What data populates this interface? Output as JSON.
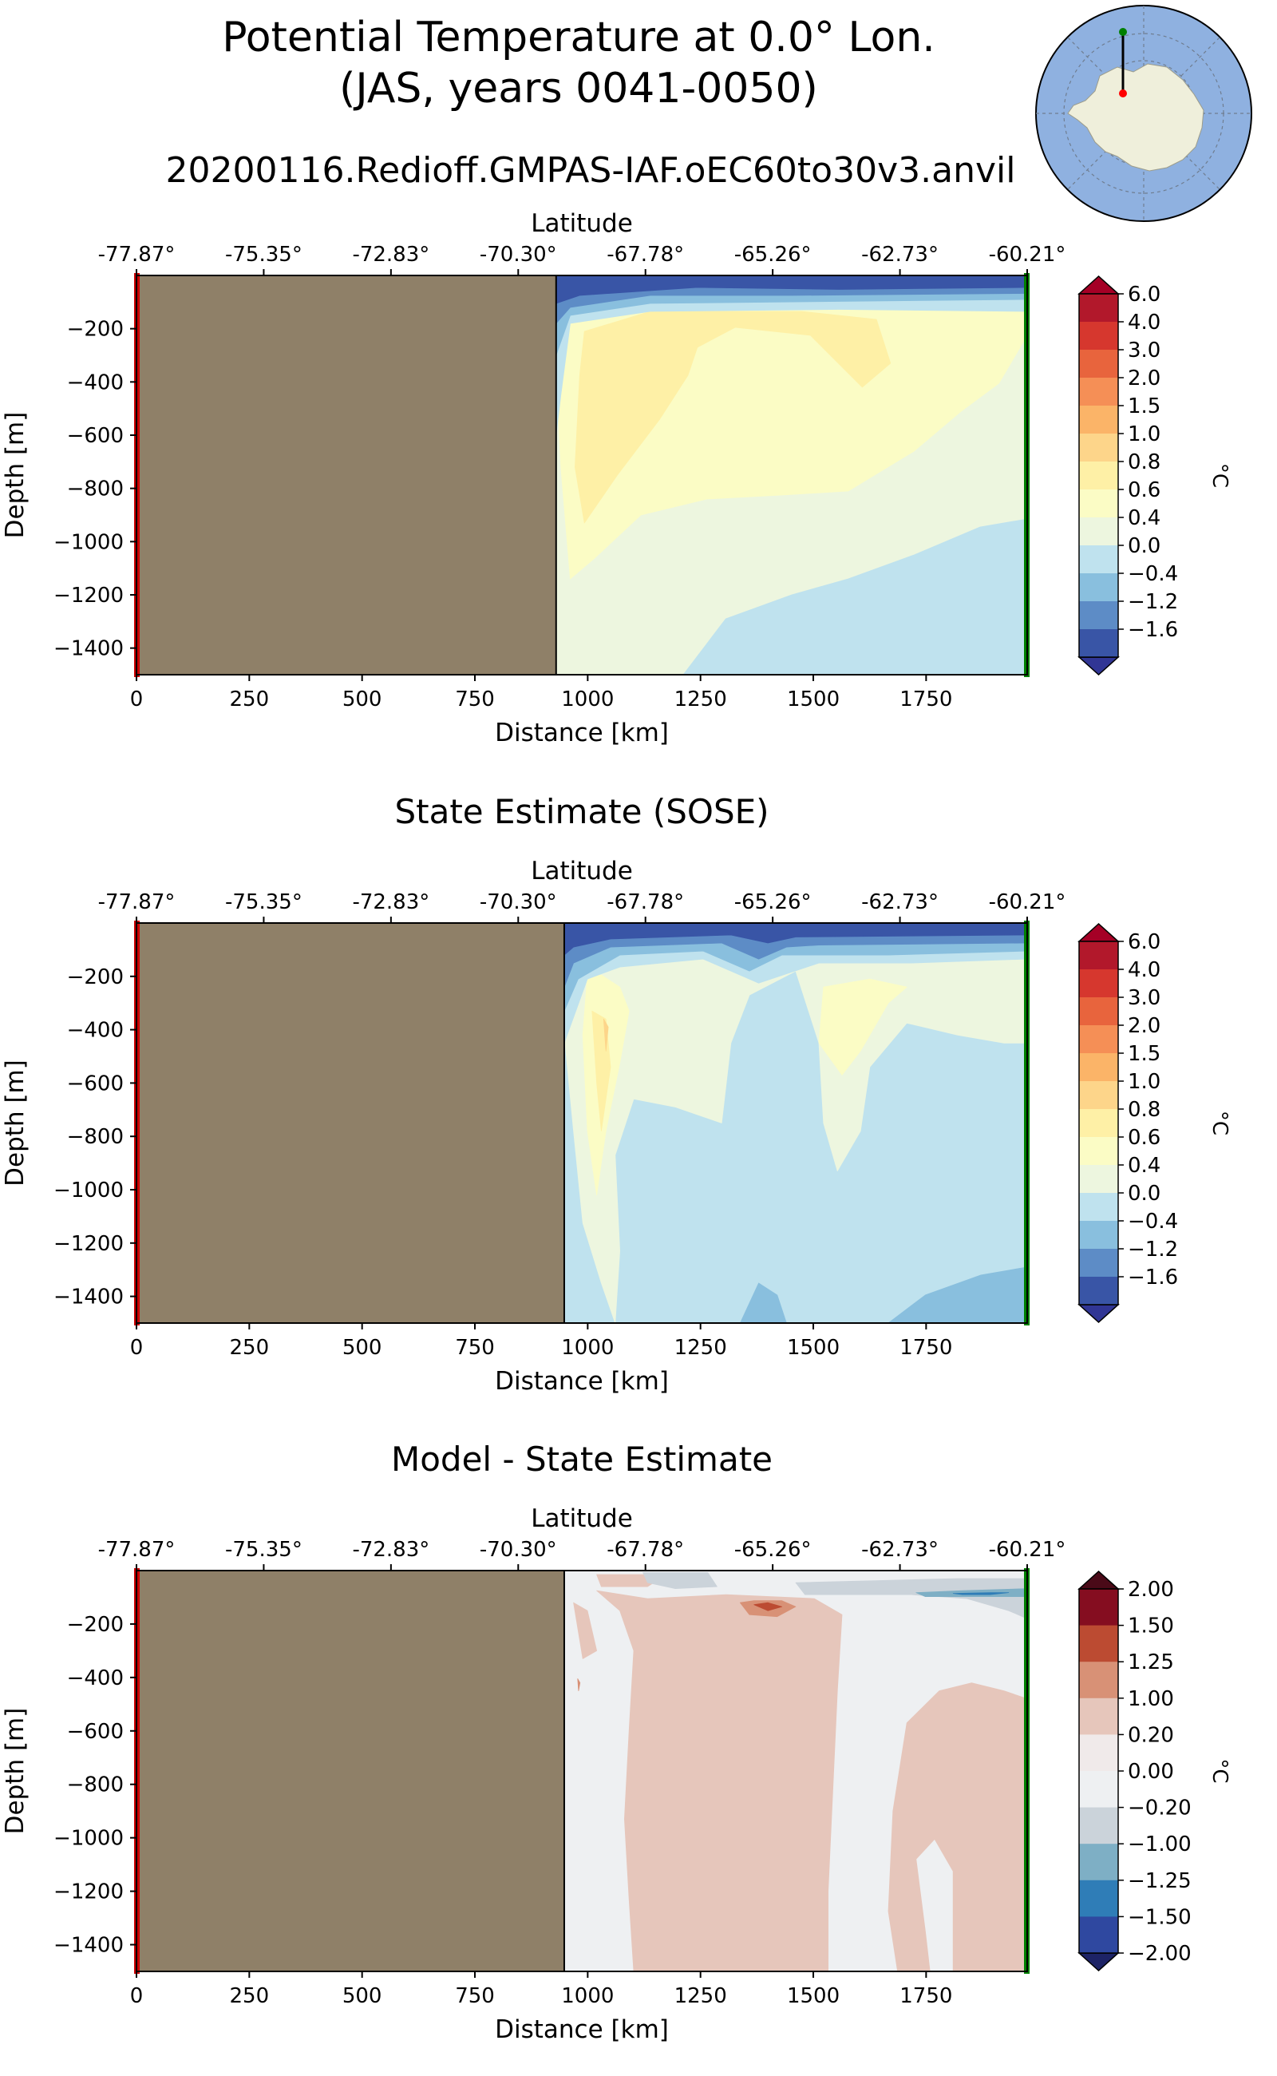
{
  "figure": {
    "title_line1": "Potential Temperature at 0.0° Lon.",
    "title_line2": "(JAS, years 0041-0050)",
    "run_name": "20200116.Redioff.GMPAS-IAF.oEC60to30v3.anvil"
  },
  "inset_map": {
    "ocean_color": "#8fb1e0",
    "land_color": "#efefdb",
    "transect_start_color": "#008000",
    "transect_end_color": "#ff0000"
  },
  "colors": {
    "land_mask": "#8f8068",
    "start_line": "#cc0000",
    "end_line": "#008000"
  },
  "chart_data": [
    {
      "type": "heatmap",
      "title": "",
      "xlabel": "Distance [km]",
      "ylabel": "Depth [m]",
      "top_axis_label": "Latitude",
      "top_ticks": [
        "-77.87°",
        "-75.35°",
        "-72.83°",
        "-70.30°",
        "-67.78°",
        "-65.26°",
        "-62.73°",
        "-60.21°"
      ],
      "top_tick_positions_km": [
        0,
        282,
        564,
        846,
        1128,
        1410,
        1692,
        1974
      ],
      "x_ticks": [
        0,
        250,
        500,
        750,
        1000,
        1250,
        1500,
        1750
      ],
      "y_ticks": [
        -200,
        -400,
        -600,
        -800,
        -1000,
        -1200,
        -1400
      ],
      "xlim": [
        0,
        1974
      ],
      "ylim": [
        -1500,
        0
      ],
      "land_until_km": 930,
      "colorbar": {
        "unit": "°C",
        "levels": [
          "6.0",
          "4.0",
          "3.0",
          "2.0",
          "1.5",
          "1.0",
          "0.8",
          "0.6",
          "0.4",
          "0.0",
          "-0.4",
          "-1.2",
          "-1.6"
        ],
        "colors": [
          "#b2182b",
          "#d6372e",
          "#e8643d",
          "#f58f56",
          "#fbb468",
          "#fdd58a",
          "#fef0a6",
          "#fbfcc5",
          "#edf6df",
          "#bfe2ee",
          "#89bfde",
          "#5d8cc6",
          "#3955a6"
        ],
        "over_color": "#a50026",
        "under_color": "#313695"
      },
      "fields": [
        {
          "value_range": "0.4 to 0.6",
          "shape": "fill",
          "color": "#edf6df"
        },
        {
          "value_range": "0.0 to 0.4",
          "shape": "deep-wedge",
          "color": "#bfe2ee"
        },
        {
          "value_range": "0.6 to 0.8",
          "shape": "intermediate",
          "color": "#fbfcc5"
        },
        {
          "value_range": "0.8 to 1.0",
          "shape": "core",
          "color": "#fef0a6"
        },
        {
          "value_range": "-1.6 to 0.4",
          "shape": "surface",
          "color": "#3955a6"
        }
      ]
    },
    {
      "type": "heatmap",
      "title": "State Estimate (SOSE)",
      "xlabel": "Distance [km]",
      "ylabel": "Depth [m]",
      "top_axis_label": "Latitude",
      "top_ticks": [
        "-77.87°",
        "-75.35°",
        "-72.83°",
        "-70.30°",
        "-67.78°",
        "-65.26°",
        "-62.73°",
        "-60.21°"
      ],
      "top_tick_positions_km": [
        0,
        282,
        564,
        846,
        1128,
        1410,
        1692,
        1974
      ],
      "x_ticks": [
        0,
        250,
        500,
        750,
        1000,
        1250,
        1500,
        1750
      ],
      "y_ticks": [
        -200,
        -400,
        -600,
        -800,
        -1000,
        -1200,
        -1400
      ],
      "xlim": [
        0,
        1974
      ],
      "ylim": [
        -1500,
        0
      ],
      "land_until_km": 948,
      "colorbar": {
        "unit": "°C",
        "levels": [
          "6.0",
          "4.0",
          "3.0",
          "2.0",
          "1.5",
          "1.0",
          "0.8",
          "0.6",
          "0.4",
          "0.0",
          "-0.4",
          "-1.2",
          "-1.6"
        ],
        "colors": [
          "#b2182b",
          "#d6372e",
          "#e8643d",
          "#f58f56",
          "#fbb468",
          "#fdd58a",
          "#fef0a6",
          "#fbfcc5",
          "#edf6df",
          "#bfe2ee",
          "#89bfde",
          "#5d8cc6",
          "#3955a6"
        ],
        "over_color": "#a50026",
        "under_color": "#313695"
      }
    },
    {
      "type": "heatmap",
      "title": "Model - State Estimate",
      "xlabel": "Distance [km]",
      "ylabel": "Depth [m]",
      "top_axis_label": "Latitude",
      "top_ticks": [
        "-77.87°",
        "-75.35°",
        "-72.83°",
        "-70.30°",
        "-67.78°",
        "-65.26°",
        "-62.73°",
        "-60.21°"
      ],
      "top_tick_positions_km": [
        0,
        282,
        564,
        846,
        1128,
        1410,
        1692,
        1974
      ],
      "x_ticks": [
        0,
        250,
        500,
        750,
        1000,
        1250,
        1500,
        1750
      ],
      "y_ticks": [
        -200,
        -400,
        -600,
        -800,
        -1000,
        -1200,
        -1400
      ],
      "xlim": [
        0,
        1974
      ],
      "ylim": [
        -1500,
        0
      ],
      "land_until_km": 948,
      "colorbar": {
        "unit": "°C",
        "levels": [
          "2.00",
          "1.50",
          "1.25",
          "1.00",
          "0.20",
          "0.00",
          "−0.20",
          "−1.00",
          "−1.25",
          "−1.50",
          "−2.00"
        ],
        "colors": [
          "#850d20",
          "#bc4b32",
          "#d89176",
          "#e6c6bb",
          "#f0eaea",
          "#eef0f2",
          "#cbd3da",
          "#7eafc5",
          "#2f7db7",
          "#2f48a0"
        ],
        "over_color": "#4a0a18",
        "under_color": "#1d2366"
      }
    }
  ]
}
